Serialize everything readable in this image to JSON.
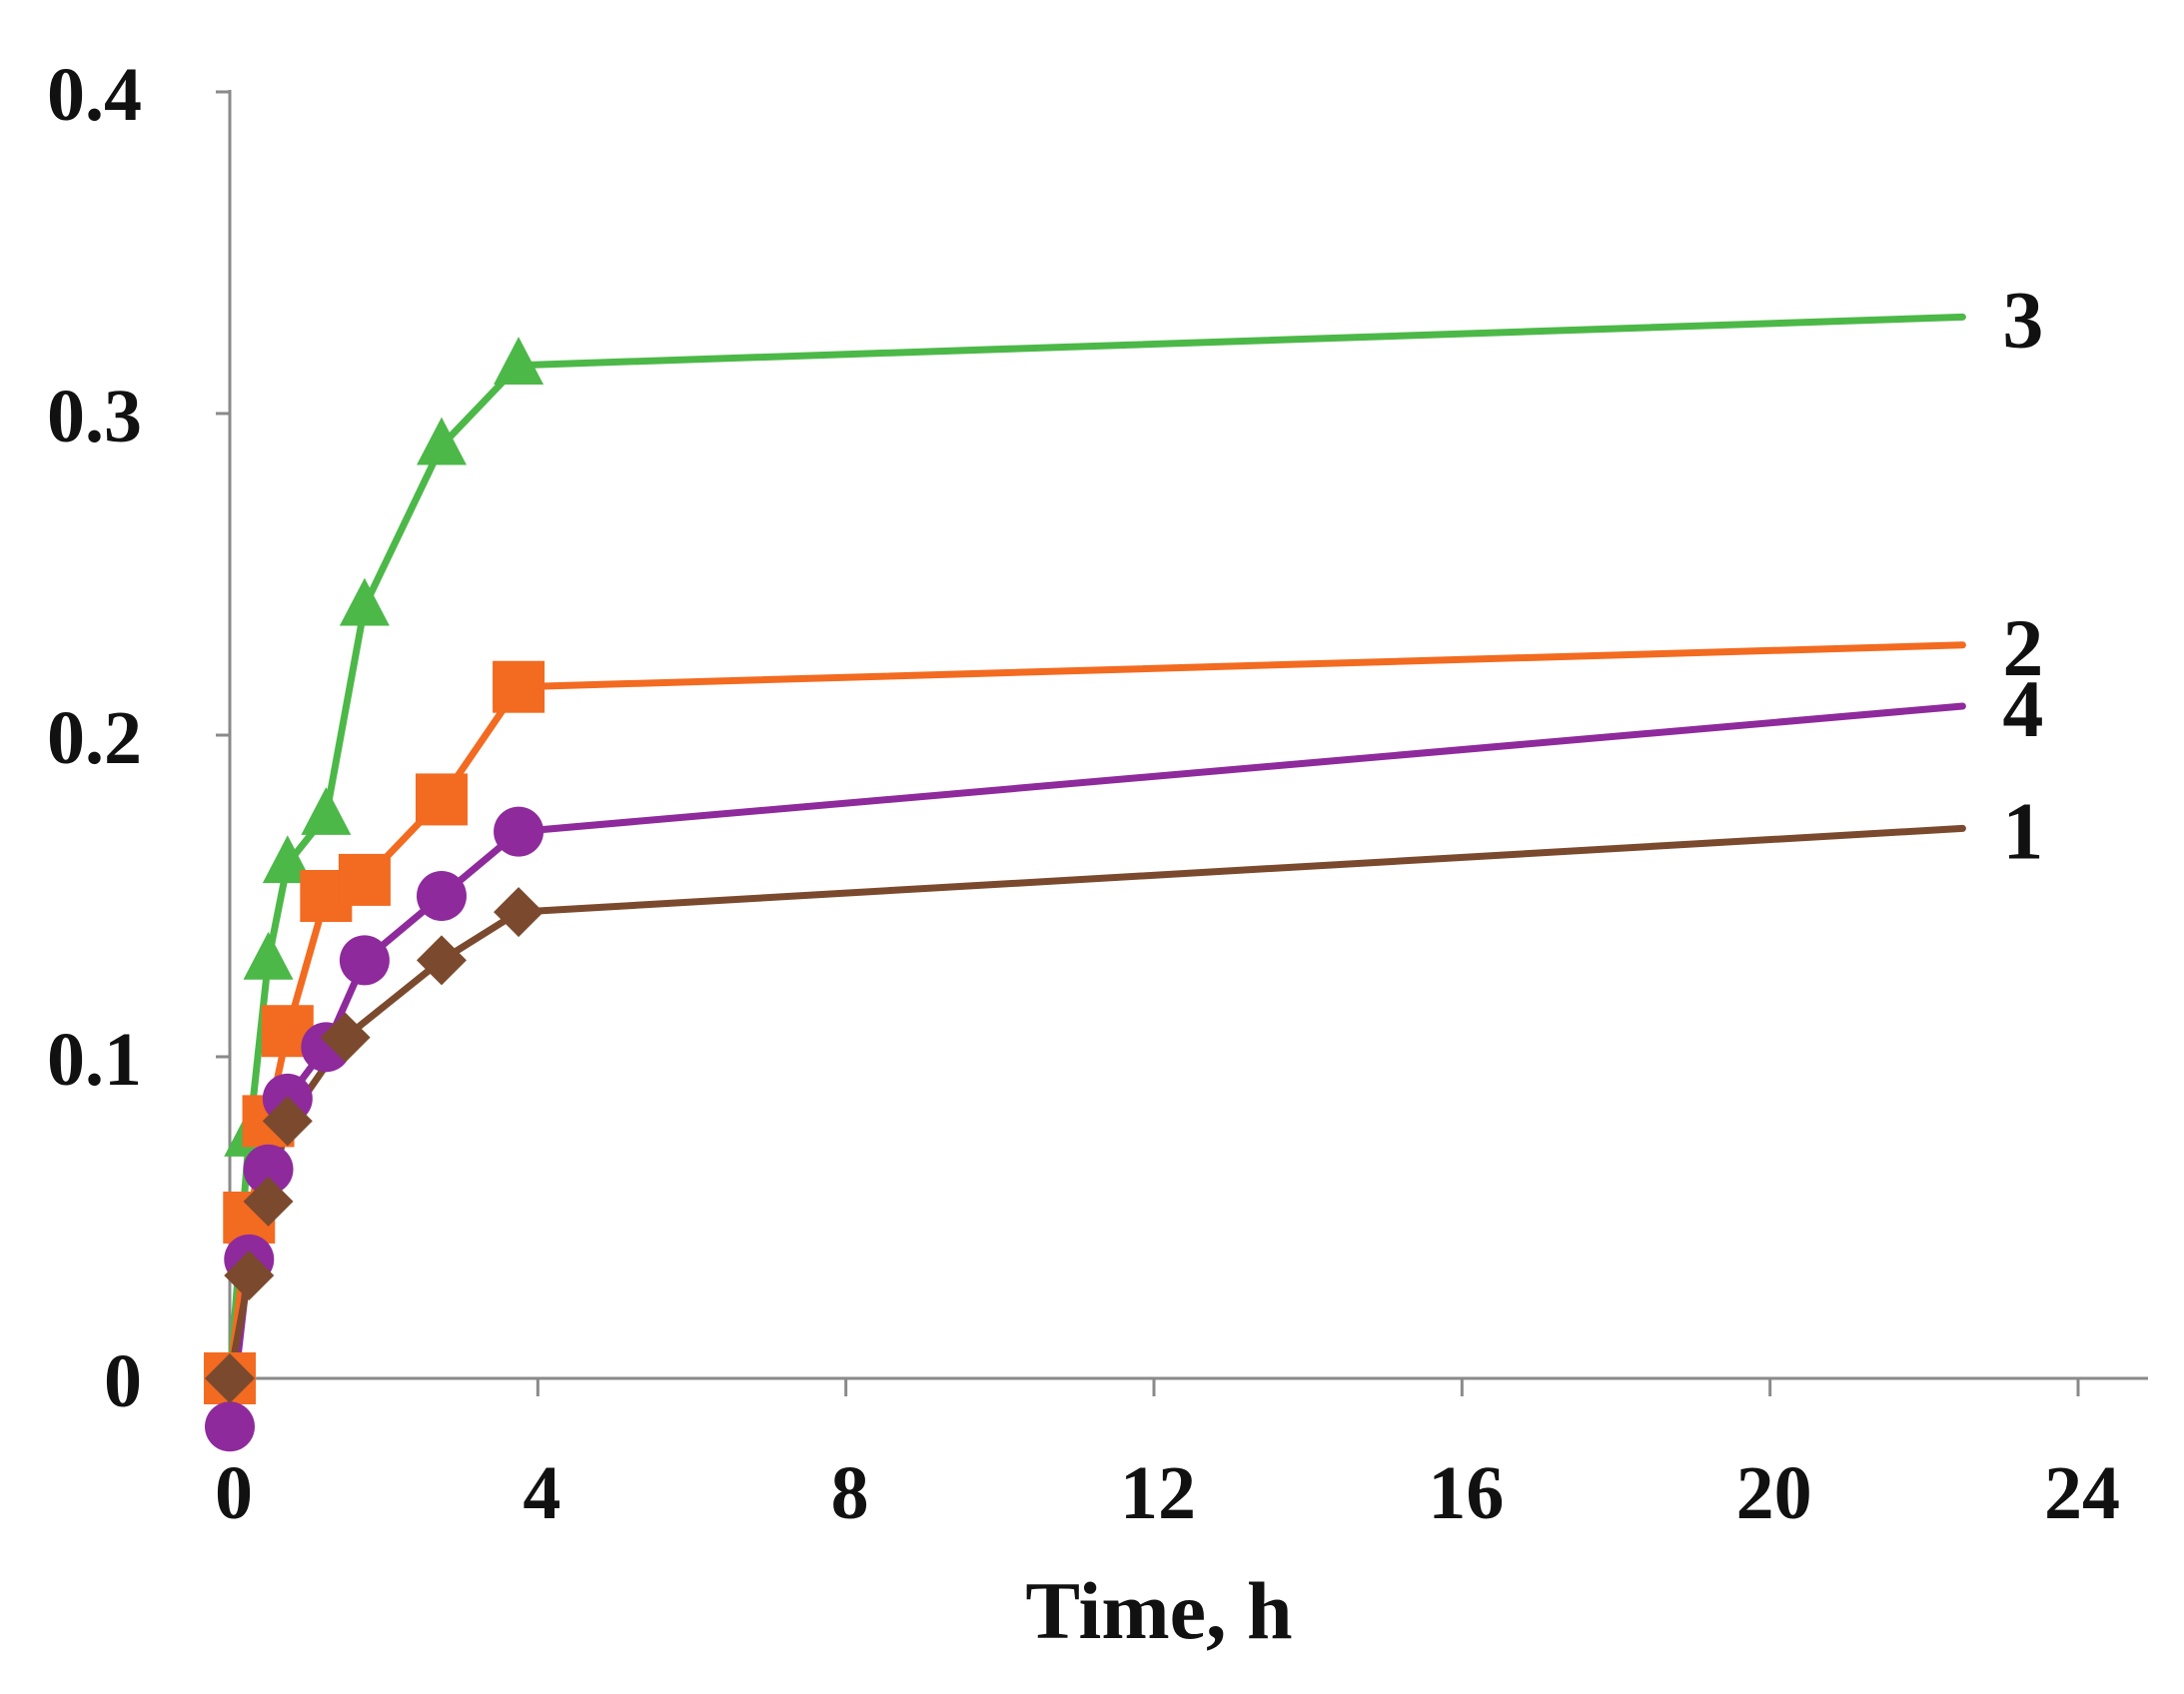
{
  "chart_data": {
    "type": "line",
    "title": "",
    "xlabel": "Time, h",
    "ylabel": "",
    "xlim": [
      0,
      24
    ],
    "ylim": [
      -0.015,
      0.4
    ],
    "x_ticks": [
      0,
      4,
      8,
      12,
      16,
      20,
      24
    ],
    "x_tick_labels": [
      "0",
      "4",
      "8",
      "12",
      "16",
      "20",
      "24"
    ],
    "y_ticks": [
      0,
      0.1,
      0.2,
      0.3,
      0.4
    ],
    "y_tick_labels": [
      "0",
      "0.1",
      "0.2",
      "0.3",
      "0.4"
    ],
    "grid": false,
    "legend": "none (series labelled at line ends)",
    "series": [
      {
        "name": "1",
        "label": "1",
        "color": "#7b4a2e",
        "marker": "diamond",
        "x": [
          0,
          0.25,
          0.5,
          0.75,
          1.5,
          2.75,
          3.75,
          22.5
        ],
        "y": [
          0,
          0.032,
          0.055,
          0.08,
          0.106,
          0.13,
          0.145,
          0.171
        ]
      },
      {
        "name": "2",
        "label": "2",
        "color": "#f26b21",
        "marker": "square",
        "x": [
          0,
          0.25,
          0.5,
          0.75,
          1.25,
          1.75,
          2.75,
          3.75,
          22.5
        ],
        "y": [
          0,
          0.05,
          0.08,
          0.108,
          0.15,
          0.155,
          0.18,
          0.215,
          0.228
        ]
      },
      {
        "name": "3",
        "label": "3",
        "color": "#4cb848",
        "marker": "triangle",
        "x": [
          0,
          0.25,
          0.5,
          0.75,
          1.25,
          1.75,
          2.75,
          3.75,
          22.5
        ],
        "y": [
          0,
          0.075,
          0.13,
          0.16,
          0.175,
          0.24,
          0.29,
          0.315,
          0.33
        ]
      },
      {
        "name": "4",
        "label": "4",
        "color": "#8e2a9c",
        "marker": "circle",
        "x": [
          0,
          0.25,
          0.5,
          0.75,
          1.25,
          1.75,
          2.75,
          3.75,
          22.5
        ],
        "y": [
          -0.015,
          0.037,
          0.065,
          0.087,
          0.103,
          0.13,
          0.15,
          0.17,
          0.209
        ]
      }
    ]
  }
}
